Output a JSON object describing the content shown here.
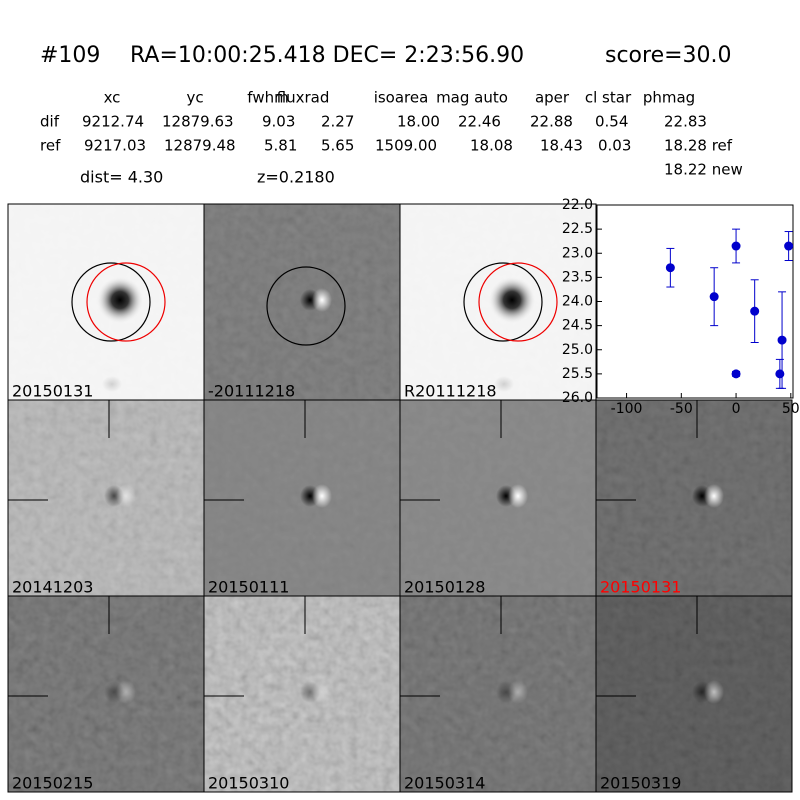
{
  "header": {
    "id": "#109",
    "coords": "RA=10:00:25.418 DEC= 2:23:56.90",
    "score": "score=30.0"
  },
  "table": {
    "columns": [
      "xc",
      "yc",
      "fwhm",
      "fluxrad",
      "isoarea",
      "mag auto",
      "aper",
      "cl star",
      "phmag"
    ],
    "rows": [
      [
        "dif",
        "9212.74",
        "12879.63",
        "9.03",
        "2.27",
        "18.00",
        "22.46",
        "22.88",
        "0.54",
        "22.83"
      ],
      [
        "ref",
        "9217.03",
        "12879.48",
        "5.81",
        "5.65",
        "1509.00",
        "18.08",
        "18.43",
        "0.03",
        "18.28 ref"
      ]
    ],
    "extra": "18.22 new"
  },
  "dist": "dist=  4.30",
  "z": "z=0.2180",
  "panels": [
    {
      "label": "20150131"
    },
    {
      "label": "-20111218"
    },
    {
      "label": "R20111218"
    },
    {
      "label": "20141203"
    },
    {
      "label": "20150111"
    },
    {
      "label": "20150128"
    },
    {
      "label": "20150131",
      "label_color": "#ff0000"
    },
    {
      "label": "20150215"
    },
    {
      "label": "20150310"
    },
    {
      "label": "20150314"
    },
    {
      "label": "20150319"
    }
  ],
  "chart_data": {
    "type": "errorbar",
    "x": [
      -60,
      -20,
      0,
      0,
      17,
      40,
      42,
      48
    ],
    "series": [
      {
        "color": "#0000cc",
        "values": [
          23.3,
          23.9,
          22.85,
          25.5,
          24.2,
          25.5,
          24.8,
          22.85
        ],
        "errors": [
          0.4,
          0.6,
          0.35,
          0.05,
          0.65,
          0.3,
          1.0,
          0.3
        ]
      }
    ],
    "xlim": [
      -127,
      52
    ],
    "ylim": [
      26,
      22
    ],
    "xticks": [
      -100,
      -50,
      0,
      50
    ],
    "yticks": [
      {
        "value": 22,
        "label": "22.0"
      },
      {
        "value": 22.5,
        "label": "22.5"
      },
      {
        "value": 23,
        "label": "23.0"
      },
      {
        "value": 23.5,
        "label": "23.5"
      },
      {
        "value": 24,
        "label": "24.0"
      },
      {
        "value": 24.5,
        "label": "24.5"
      },
      {
        "value": 25,
        "label": "25.0"
      },
      {
        "value": 25.5,
        "label": "25.5"
      },
      {
        "value": 26,
        "label": "26.0"
      }
    ]
  }
}
